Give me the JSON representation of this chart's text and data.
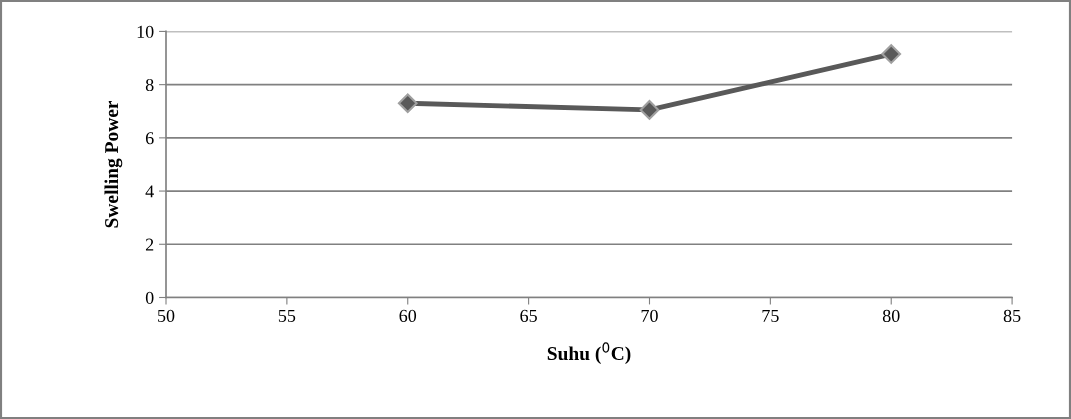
{
  "chart_data": {
    "type": "line",
    "xlabel": "Suhu ($^{0}$C)",
    "ylabel": "Swelling Power",
    "x": [
      60,
      70,
      80
    ],
    "series": [
      {
        "color": "#595959",
        "values": [
          7.3,
          7.05,
          9.15
        ]
      }
    ],
    "xlim": [
      50,
      85
    ],
    "xticks": [
      50,
      55,
      60,
      65,
      70,
      75,
      80,
      85
    ],
    "ylim": [
      0,
      10
    ],
    "yticks": [
      0,
      2,
      4,
      6,
      8,
      10
    ],
    "grid": "y",
    "marker": "diamond",
    "line_style": "solid"
  }
}
